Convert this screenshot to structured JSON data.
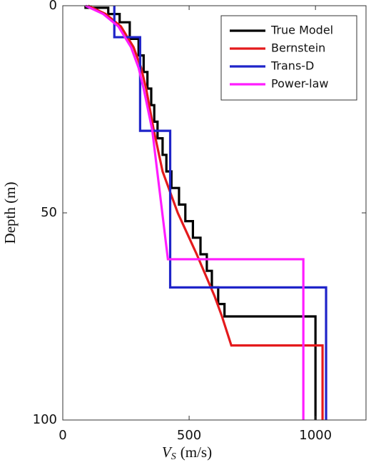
{
  "chart_data": {
    "type": "line",
    "x_label_parts": [
      "V",
      "S",
      "(m/s)"
    ],
    "y_label": "Depth (m)",
    "xlim": [
      0,
      1200
    ],
    "xticks": [
      0,
      500,
      1000
    ],
    "ylim": [
      0,
      100
    ],
    "yticks": [
      0,
      50,
      100
    ],
    "y_reversed": true,
    "legend": "upper right",
    "series": [
      {
        "name": "True Model",
        "color": "#000000",
        "x": [
          90,
          90,
          180,
          180,
          225,
          225,
          265,
          265,
          300,
          300,
          320,
          320,
          335,
          335,
          350,
          350,
          362,
          362,
          375,
          375,
          395,
          395,
          410,
          410,
          430,
          430,
          460,
          460,
          485,
          485,
          515,
          515,
          545,
          545,
          570,
          570,
          590,
          590,
          615,
          615,
          640,
          640,
          1000,
          1000
        ],
        "y": [
          0,
          0.5,
          0.5,
          2,
          2,
          4,
          4,
          8,
          8,
          12,
          12,
          16,
          16,
          20,
          20,
          24,
          24,
          28,
          28,
          32,
          32,
          36,
          36,
          40,
          40,
          44,
          44,
          48,
          48,
          52,
          52,
          56,
          56,
          60,
          60,
          64,
          64,
          68,
          68,
          72,
          72,
          75,
          75,
          100
        ]
      },
      {
        "name": "Bernstein",
        "color": "#e41a1c",
        "x": [
          100,
          170,
          230,
          280,
          310,
          330,
          360,
          395,
          455,
          530,
          600,
          630,
          667,
          1028,
          1028
        ],
        "y": [
          0,
          2,
          5,
          10,
          15,
          20,
          30,
          40,
          50,
          60,
          70,
          75,
          82,
          82,
          100
        ]
      },
      {
        "name": "Trans-D",
        "color": "#1f24c9",
        "x": [
          204,
          204,
          306,
          306,
          425,
          425,
          1042,
          1042
        ],
        "y": [
          0,
          7.6,
          7.6,
          30.2,
          30.2,
          68,
          68,
          100
        ]
      },
      {
        "name": "Power-law",
        "color": "#ff1cff",
        "x": [
          90,
          160,
          220,
          270,
          300,
          320,
          354,
          416,
          952,
          952
        ],
        "y": [
          0,
          2,
          5,
          10,
          15,
          20,
          30,
          61.2,
          61.2,
          100
        ]
      }
    ]
  }
}
